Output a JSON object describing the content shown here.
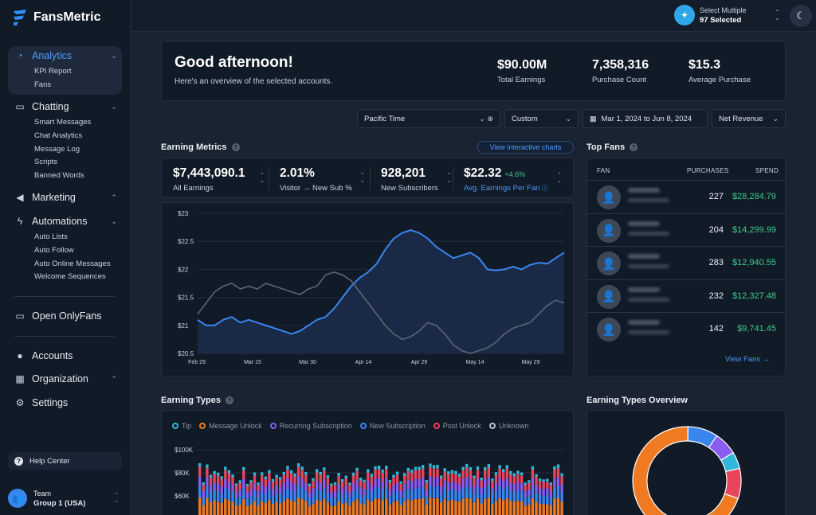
{
  "brand": {
    "name": "FansMetric"
  },
  "sidebar": {
    "analytics": {
      "label": "Analytics",
      "items": [
        "KPI Report",
        "Fans"
      ]
    },
    "chatting": {
      "label": "Chatting",
      "items": [
        "Smart Messages",
        "Chat Analytics",
        "Message Log",
        "Scripts",
        "Banned Words"
      ]
    },
    "marketing": {
      "label": "Marketing"
    },
    "automations": {
      "label": "Automations",
      "items": [
        "Auto Lists",
        "Auto Follow",
        "Auto Online Messages",
        "Welcome Sequences"
      ]
    },
    "open_onlyfans": "Open OnlyFans",
    "accounts": "Accounts",
    "organization": "Organization",
    "settings": "Settings",
    "help_center": "Help Center",
    "team": {
      "label": "Team",
      "name": "Group 1 (USA)"
    }
  },
  "topbar": {
    "selector_title": "Select Multiple",
    "selector_value": "97 Selected"
  },
  "greeting": {
    "title": "Good afternoon!",
    "subtitle": "Here's an overview of the selected accounts."
  },
  "kpis": [
    {
      "value": "$90.00M",
      "label": "Total Earnings"
    },
    {
      "value": "7,358,316",
      "label": "Purchase Count"
    },
    {
      "value": "$15.3",
      "label": "Average Purchase"
    }
  ],
  "filters": {
    "timezone": "Pacific Time",
    "range_type": "Custom",
    "date_range": "Mar 1, 2024 to Jun 8, 2024",
    "metric": "Net Revenue"
  },
  "earning_metrics": {
    "title": "Earning Metrics",
    "link": "View interactive charts",
    "cards": [
      {
        "value": "$7,443,090.1",
        "label": "All Earnings"
      },
      {
        "value": "2.01%",
        "label": "Visitor → New Sub %"
      },
      {
        "value": "928,201",
        "label": "New Subscribers"
      },
      {
        "value": "$22.32",
        "badge": "+4.6%",
        "label": "Avg. Earnings Per Fan"
      }
    ]
  },
  "chart_data": {
    "type": "line",
    "y_ticks": [
      "$23",
      "$22.5",
      "$22",
      "$21.5",
      "$21",
      "$20.5"
    ],
    "x_ticks": [
      "Feb 29",
      "Mar 15",
      "Mar 30",
      "Apr 14",
      "Apr 29",
      "May 14",
      "May 29"
    ],
    "ylim": [
      20.5,
      23
    ],
    "series": [
      {
        "values": [
          21.1,
          21.0,
          21.0,
          21.1,
          21.15,
          21.05,
          21.1,
          21.05,
          21.0,
          20.95,
          20.9,
          20.85,
          20.9,
          21.0,
          21.1,
          21.15,
          21.3,
          21.5,
          21.7,
          21.85,
          21.95,
          22.1,
          22.35,
          22.55,
          22.65,
          22.7,
          22.65,
          22.55,
          22.4,
          22.3,
          22.2,
          22.25,
          22.3,
          22.2,
          22.0,
          21.98,
          22.0,
          22.05,
          22.0,
          22.08,
          22.12,
          22.1,
          22.2,
          22.3
        ],
        "color": "#3a86f0"
      },
      {
        "values": [
          21.2,
          21.4,
          21.6,
          21.7,
          21.75,
          21.65,
          21.7,
          21.65,
          21.75,
          21.7,
          21.65,
          21.6,
          21.55,
          21.65,
          21.7,
          21.9,
          21.95,
          21.9,
          21.8,
          21.6,
          21.4,
          21.2,
          21.0,
          20.85,
          20.75,
          20.8,
          20.9,
          21.05,
          21.0,
          20.85,
          20.65,
          20.55,
          20.5,
          20.55,
          20.6,
          20.7,
          20.85,
          20.95,
          21.0,
          21.05,
          21.2,
          21.35,
          21.45,
          21.4
        ],
        "color": "#5e6674"
      }
    ]
  },
  "top_fans": {
    "title": "Top Fans",
    "columns": {
      "fan": "FAN",
      "purchases": "PURCHASES",
      "spend": "SPEND"
    },
    "rows": [
      {
        "purchases": "227",
        "spend": "$28,284.79"
      },
      {
        "purchases": "204",
        "spend": "$14,299.99"
      },
      {
        "purchases": "283",
        "spend": "$12,940.55"
      },
      {
        "purchases": "232",
        "spend": "$12,327.48"
      },
      {
        "purchases": "142",
        "spend": "$9,741.45"
      }
    ],
    "view_all": "View Fans →"
  },
  "earning_types": {
    "title": "Earning Types",
    "legend": [
      {
        "name": "Tip",
        "color": "#2fb8d8"
      },
      {
        "name": "Message Unlock",
        "color": "#f07a22"
      },
      {
        "name": "Recurring Subscription",
        "color": "#8a5cf0"
      },
      {
        "name": "New Subscription",
        "color": "#3a86f0"
      },
      {
        "name": "Post Unlock",
        "color": "#e8455d"
      },
      {
        "name": "Unknown",
        "color": "#b9c1cc"
      }
    ],
    "y_ticks": [
      "$100K",
      "$80K",
      "$60K"
    ]
  },
  "earning_overview": {
    "title": "Earning Types Overview",
    "slices": [
      {
        "name": "Message Unlock",
        "value": 70,
        "color": "#f07a22"
      },
      {
        "name": "New Subscription",
        "value": 9,
        "color": "#3a86f0"
      },
      {
        "name": "Recurring Subscription",
        "value": 7,
        "color": "#8a5cf0"
      },
      {
        "name": "Tip",
        "value": 5,
        "color": "#2fb8d8"
      },
      {
        "name": "Post Unlock",
        "value": 9,
        "color": "#e8455d"
      }
    ]
  }
}
